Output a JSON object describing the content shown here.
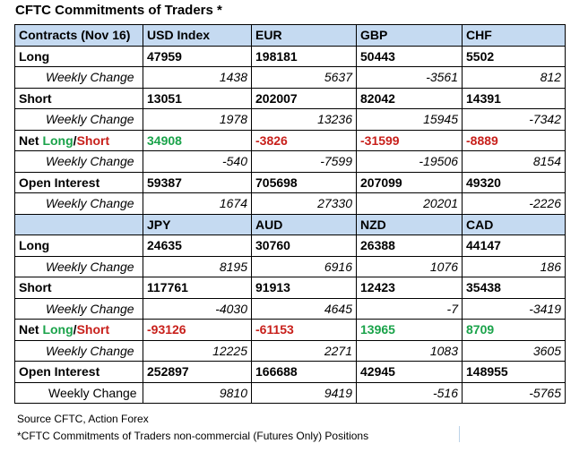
{
  "title": "CFTC Commitments of Traders *",
  "labels": {
    "contracts": "Contracts (Nov 16)",
    "long": "Long",
    "short": "Short",
    "net_long": "Long",
    "net_slash": "/",
    "net_short": "Short",
    "net_prefix": "Net ",
    "open_interest": "Open Interest",
    "weekly_change": "Weekly Change"
  },
  "sections": [
    {
      "currencies": [
        "USD Index",
        "EUR",
        "GBP",
        "CHF"
      ],
      "long": [
        "47959",
        "198181",
        "50443",
        "5502"
      ],
      "long_change": [
        "1438",
        "5637",
        "-3561",
        "812"
      ],
      "short": [
        "13051",
        "202007",
        "82042",
        "14391"
      ],
      "short_change": [
        "1978",
        "13236",
        "15945",
        "-7342"
      ],
      "net": [
        "34908",
        "-3826",
        "-31599",
        "-8889"
      ],
      "net_change": [
        "-540",
        "-7599",
        "-19506",
        "8154"
      ],
      "open_interest": [
        "59387",
        "705698",
        "207099",
        "49320"
      ],
      "oi_change": [
        "1674",
        "27330",
        "20201",
        "-2226"
      ]
    },
    {
      "currencies": [
        "JPY",
        "AUD",
        "NZD",
        "CAD"
      ],
      "long": [
        "24635",
        "30760",
        "26388",
        "44147"
      ],
      "long_change": [
        "8195",
        "6916",
        "1076",
        "186"
      ],
      "short": [
        "117761",
        "91913",
        "12423",
        "35438"
      ],
      "short_change": [
        "-4030",
        "4645",
        "-7",
        "-3419"
      ],
      "net": [
        "-93126",
        "-61153",
        "13965",
        "8709"
      ],
      "net_change": [
        "12225",
        "2271",
        "1083",
        "3605"
      ],
      "open_interest": [
        "252897",
        "166688",
        "42945",
        "148955"
      ],
      "oi_change": [
        "9810",
        "9419",
        "-516",
        "-5765"
      ]
    }
  ],
  "colors": {
    "header_bg": "#c5daf1",
    "positive": "#1aa34a",
    "negative": "#c8201b"
  },
  "footer": {
    "source": "Source CFTC, Action Forex",
    "note": "*CFTC Commitments of Traders non-commercial (Futures Only) Positions"
  }
}
